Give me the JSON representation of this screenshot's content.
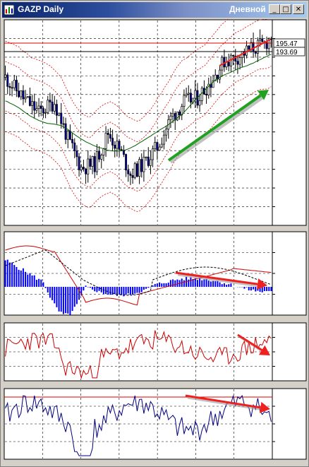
{
  "window": {
    "title": "GAZP Daily",
    "timeframe": "Дневной",
    "buttons": {
      "minimize": "_",
      "maximize": "□",
      "close": "✕"
    }
  },
  "colors": {
    "bull_candle": "#ffffff",
    "bear_candle": "#0000a0",
    "bollinger": "#e00000",
    "moving_average": "#006000",
    "macd_histogram": "#0000ff",
    "oscillator": "#cc0000",
    "lower_oscillator": "#000080",
    "arrow_green": "#22a022",
    "arrow_red": "#ee2020"
  },
  "chart_data": [
    {
      "type": "candlestick",
      "ticker": "GAZP",
      "period": "Daily",
      "y_labels": [
        "195.47",
        "193.69"
      ],
      "candle_count": 120,
      "overlays": [
        "bollinger-bands",
        "moving-average",
        "horizontal-levels"
      ],
      "annotations": [
        "green-up-arrow",
        "red-trendline"
      ]
    },
    {
      "type": "histogram-line",
      "series": [
        "macd-histogram",
        "signal-line",
        "red-line"
      ],
      "annotations": [
        "red-down-arrow"
      ]
    },
    {
      "type": "line",
      "series": [
        "oscillator"
      ],
      "annotations": [
        "red-down-arrow"
      ]
    },
    {
      "type": "line",
      "series": [
        "lower-oscillator"
      ],
      "annotations": [
        "red-down-arrow"
      ]
    }
  ]
}
